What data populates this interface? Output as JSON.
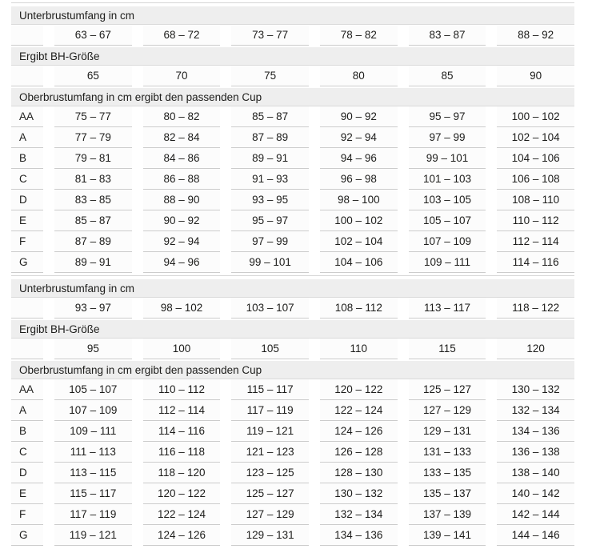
{
  "colors": {
    "band_bg": "#eeeeee",
    "band_border": "#dadada",
    "row_border": "#cccccc",
    "cell_bg": "#fcfcfc",
    "text": "#1d1d1b"
  },
  "chart_data": {
    "type": "table",
    "title": "",
    "sections": [
      {
        "underbust_header": "Unterbrustumfang in cm",
        "underbust_ranges": [
          "63 – 67",
          "68 – 72",
          "73 – 77",
          "78 – 82",
          "83 – 87",
          "88 – 92"
        ],
        "band_size_header": "Ergibt BH-Größe",
        "band_sizes": [
          "65",
          "70",
          "75",
          "80",
          "85",
          "90"
        ],
        "cup_header": "Oberbrustumfang in cm ergibt den passenden Cup",
        "cup_rows": [
          {
            "cup": "AA",
            "values": [
              "75 – 77",
              "80 – 82",
              "85 – 87",
              "90 – 92",
              "95 – 97",
              "100 – 102"
            ]
          },
          {
            "cup": "A",
            "values": [
              "77 – 79",
              "82 – 84",
              "87 – 89",
              "92 – 94",
              "97 – 99",
              "102 – 104"
            ]
          },
          {
            "cup": "B",
            "values": [
              "79 – 81",
              "84 – 86",
              "89 – 91",
              "94 – 96",
              "99 – 101",
              "104 – 106"
            ]
          },
          {
            "cup": "C",
            "values": [
              "81 – 83",
              "86 – 88",
              "91 – 93",
              "96 – 98",
              "101 – 103",
              "106 – 108"
            ]
          },
          {
            "cup": "D",
            "values": [
              "83 – 85",
              "88 – 90",
              "93 – 95",
              "98 – 100",
              "103 – 105",
              "108 – 110"
            ]
          },
          {
            "cup": "E",
            "values": [
              "85 – 87",
              "90 – 92",
              "95 – 97",
              "100 – 102",
              "105 – 107",
              "110 – 112"
            ]
          },
          {
            "cup": "F",
            "values": [
              "87 – 89",
              "92 – 94",
              "97 – 99",
              "102 – 104",
              "107 – 109",
              "112 – 114"
            ]
          },
          {
            "cup": "G",
            "values": [
              "89 – 91",
              "94 – 96",
              "99 – 101",
              "104 – 106",
              "109 – 111",
              "114 – 116"
            ]
          }
        ]
      },
      {
        "underbust_header": "Unterbrustumfang in cm",
        "underbust_ranges": [
          "93 – 97",
          "98 – 102",
          "103 – 107",
          "108 – 112",
          "113 – 117",
          "118 – 122"
        ],
        "band_size_header": "Ergibt BH-Größe",
        "band_sizes": [
          "95",
          "100",
          "105",
          "110",
          "115",
          "120"
        ],
        "cup_header": "Oberbrustumfang in cm ergibt den passenden Cup",
        "cup_rows": [
          {
            "cup": "AA",
            "values": [
              "105 – 107",
              "110 – 112",
              "115 – 117",
              "120 – 122",
              "125 – 127",
              "130 – 132"
            ]
          },
          {
            "cup": "A",
            "values": [
              "107 – 109",
              "112 – 114",
              "117 – 119",
              "122 – 124",
              "127 – 129",
              "132 – 134"
            ]
          },
          {
            "cup": "B",
            "values": [
              "109 – 111",
              "114 – 116",
              "119 – 121",
              "124 – 126",
              "129 – 131",
              "134 – 136"
            ]
          },
          {
            "cup": "C",
            "values": [
              "111 – 113",
              "116 – 118",
              "121 – 123",
              "126 – 128",
              "131 – 133",
              "136 – 138"
            ]
          },
          {
            "cup": "D",
            "values": [
              "113 – 115",
              "118 – 120",
              "123 – 125",
              "128 – 130",
              "133 – 135",
              "138 – 140"
            ]
          },
          {
            "cup": "E",
            "values": [
              "115 – 117",
              "120 – 122",
              "125 – 127",
              "130 – 132",
              "135 – 137",
              "140 – 142"
            ]
          },
          {
            "cup": "F",
            "values": [
              "117 – 119",
              "122 – 124",
              "127 – 129",
              "132 – 134",
              "137 – 139",
              "142 – 144"
            ]
          },
          {
            "cup": "G",
            "values": [
              "119 – 121",
              "124 – 126",
              "129 – 131",
              "134 – 136",
              "139 – 141",
              "144 – 146"
            ]
          }
        ]
      }
    ]
  }
}
